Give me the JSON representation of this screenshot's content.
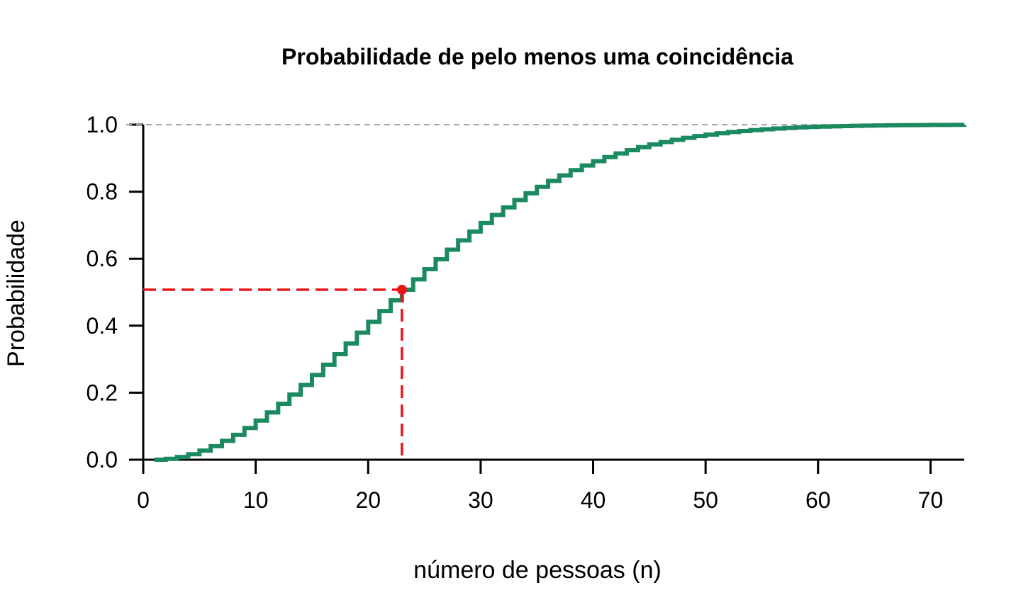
{
  "chart_data": {
    "type": "line",
    "title": "Probabilidade de pelo menos uma coincidência",
    "xlabel": "número de pessoas (n)",
    "ylabel": "Probabilidade",
    "xlim": [
      0,
      73
    ],
    "ylim": [
      0,
      1
    ],
    "xticks": [
      "0",
      "10",
      "20",
      "30",
      "40",
      "50",
      "60",
      "70"
    ],
    "yticks": [
      "0.0",
      "0.2",
      "0.4",
      "0.6",
      "0.8",
      "1.0"
    ],
    "series": [
      {
        "step": true,
        "color": "#1b8a5f",
        "x": [
          1,
          2,
          3,
          4,
          5,
          6,
          7,
          8,
          9,
          10,
          11,
          12,
          13,
          14,
          15,
          16,
          17,
          18,
          19,
          20,
          21,
          22,
          23,
          24,
          25,
          26,
          27,
          28,
          29,
          30,
          31,
          32,
          33,
          34,
          35,
          36,
          37,
          38,
          39,
          40,
          41,
          42,
          43,
          44,
          45,
          46,
          47,
          48,
          49,
          50,
          51,
          52,
          53,
          54,
          55,
          56,
          57,
          58,
          59,
          60,
          61,
          62,
          63,
          64,
          65,
          66,
          67,
          68,
          69,
          70,
          71,
          72,
          73
        ],
        "y": [
          0.0,
          0.0027,
          0.0082,
          0.0164,
          0.0271,
          0.0405,
          0.0562,
          0.0743,
          0.0946,
          0.1169,
          0.1411,
          0.167,
          0.1944,
          0.2231,
          0.2529,
          0.2836,
          0.315,
          0.3469,
          0.3791,
          0.4114,
          0.4437,
          0.4757,
          0.5073,
          0.5383,
          0.5687,
          0.5982,
          0.6269,
          0.6545,
          0.681,
          0.7063,
          0.7305,
          0.7533,
          0.775,
          0.7953,
          0.8144,
          0.8322,
          0.8487,
          0.8641,
          0.8782,
          0.8912,
          0.9032,
          0.914,
          0.9239,
          0.9329,
          0.941,
          0.9483,
          0.9548,
          0.9606,
          0.9658,
          0.9704,
          0.9744,
          0.978,
          0.9811,
          0.9839,
          0.9863,
          0.9883,
          0.9901,
          0.9917,
          0.993,
          0.9941,
          0.9951,
          0.9959,
          0.9966,
          0.9972,
          0.9977,
          0.9981,
          0.9984,
          0.9987,
          0.999,
          0.9992,
          0.9993,
          0.9995,
          0.9996
        ]
      }
    ],
    "reference_line_y": 1.0,
    "reference_line_color": "#a6a6a6",
    "highlight": {
      "x": 23,
      "y": 0.5073,
      "color": "#e8161b"
    }
  }
}
